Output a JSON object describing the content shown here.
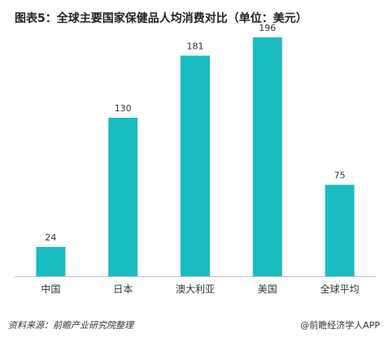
{
  "colors": {
    "bar": "#19BCC0",
    "text": "#333333",
    "axis": "#bfbfbf"
  },
  "chart_data": {
    "type": "bar",
    "title": "图表5：全球主要国家保健品人均消费对比（单位：美元）",
    "categories": [
      "中国",
      "日本",
      "澳大利亚",
      "美国",
      "全球平均"
    ],
    "values": [
      24,
      130,
      181,
      196,
      75
    ],
    "ylim": [
      0,
      200
    ],
    "grid": false,
    "xlabel": "",
    "ylabel": ""
  },
  "footer": {
    "source": "资料来源：前瞻产业研究院整理",
    "brand": "@前瞻经济学人APP"
  }
}
